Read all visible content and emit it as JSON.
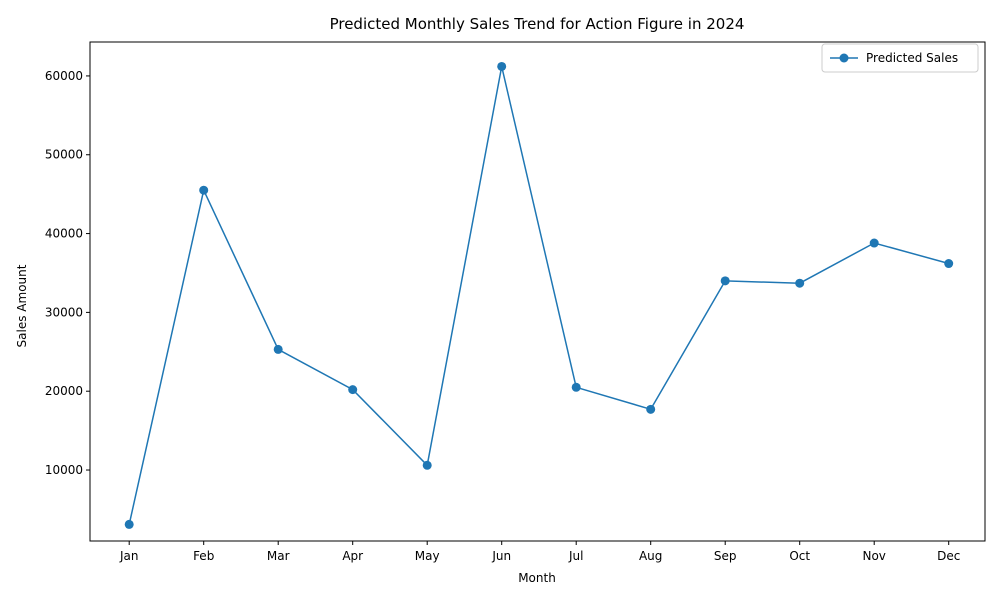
{
  "chart_data": {
    "type": "line",
    "title": "Predicted Monthly Sales Trend for Action Figure in 2024",
    "xlabel": "Month",
    "ylabel": "Sales Amount",
    "categories": [
      "Jan",
      "Feb",
      "Mar",
      "Apr",
      "May",
      "Jun",
      "Jul",
      "Aug",
      "Sep",
      "Oct",
      "Nov",
      "Dec"
    ],
    "series": [
      {
        "name": "Predicted Sales",
        "color": "#1f77b4",
        "marker": "circle",
        "values": [
          3100,
          45500,
          25300,
          20200,
          10600,
          61200,
          20500,
          17700,
          34000,
          33700,
          38800,
          36200
        ]
      }
    ],
    "yticks": [
      10000,
      20000,
      30000,
      40000,
      50000,
      60000
    ],
    "ylim": [
      995,
      64305
    ],
    "grid": false,
    "legend": {
      "position": "top-right"
    }
  }
}
